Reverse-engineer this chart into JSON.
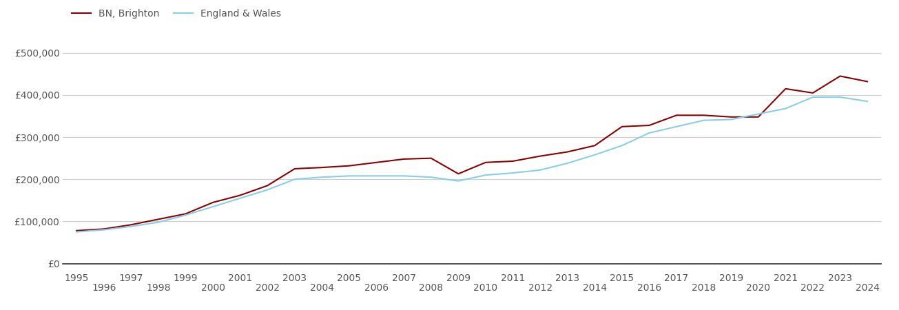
{
  "bn_brighton": {
    "years": [
      1995,
      1996,
      1997,
      1998,
      1999,
      2000,
      2001,
      2002,
      2003,
      2004,
      2005,
      2006,
      2007,
      2008,
      2009,
      2010,
      2011,
      2012,
      2013,
      2014,
      2015,
      2016,
      2017,
      2018,
      2019,
      2020,
      2021,
      2022,
      2023,
      2024
    ],
    "values": [
      78000,
      82000,
      92000,
      105000,
      118000,
      145000,
      162000,
      185000,
      225000,
      228000,
      232000,
      240000,
      248000,
      250000,
      213000,
      240000,
      243000,
      255000,
      265000,
      280000,
      325000,
      328000,
      352000,
      352000,
      348000,
      348000,
      415000,
      405000,
      445000,
      432000
    ]
  },
  "england_wales": {
    "years": [
      1995,
      1996,
      1997,
      1998,
      1999,
      2000,
      2001,
      2002,
      2003,
      2004,
      2005,
      2006,
      2007,
      2008,
      2009,
      2010,
      2011,
      2012,
      2013,
      2014,
      2015,
      2016,
      2017,
      2018,
      2019,
      2020,
      2021,
      2022,
      2023,
      2024
    ],
    "values": [
      75000,
      80000,
      88000,
      98000,
      115000,
      135000,
      155000,
      175000,
      200000,
      205000,
      208000,
      208000,
      208000,
      205000,
      196000,
      210000,
      215000,
      222000,
      238000,
      258000,
      280000,
      310000,
      325000,
      340000,
      342000,
      355000,
      368000,
      395000,
      395000,
      385000
    ]
  },
  "bn_color": "#8b0000",
  "ew_color": "#87ceeb",
  "bn_label": "BN, Brighton",
  "ew_label": "England & Wales",
  "ylim": [
    0,
    530000
  ],
  "yticks": [
    0,
    100000,
    200000,
    300000,
    400000,
    500000
  ],
  "ytick_labels": [
    "£0",
    "£100,000",
    "£200,000",
    "£300,000",
    "£400,000",
    "£500,000"
  ],
  "background_color": "#ffffff",
  "grid_color": "#cccccc",
  "line_width": 1.5,
  "font_color": "#555555",
  "font_size": 10
}
